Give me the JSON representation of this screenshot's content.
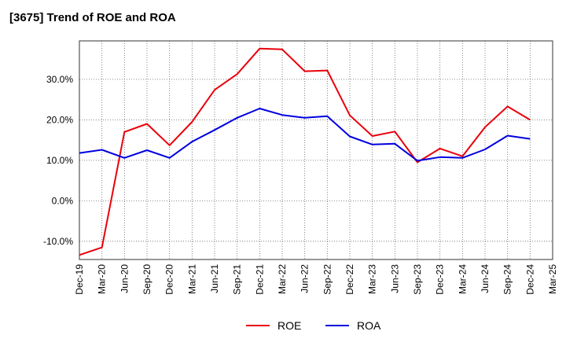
{
  "chart_data": {
    "type": "line",
    "title": "[3675]  Trend of ROE and ROA",
    "x": [
      "Dec-19",
      "Mar-20",
      "Jun-20",
      "Sep-20",
      "Dec-20",
      "Mar-21",
      "Jun-21",
      "Sep-21",
      "Dec-21",
      "Mar-22",
      "Jun-22",
      "Sep-22",
      "Dec-22",
      "Mar-23",
      "Jun-23",
      "Sep-23",
      "Dec-23",
      "Mar-24",
      "Jun-24",
      "Sep-24",
      "Dec-24",
      "Mar-25"
    ],
    "y_ticks": [
      "-10.0%",
      "0.0%",
      "10.0%",
      "20.0%",
      "30.0%"
    ],
    "y_tick_values": [
      -10,
      0,
      10,
      20,
      30
    ],
    "ylim": [
      -14.5,
      39.5
    ],
    "grid": true,
    "legend_position": "bottom",
    "series": [
      {
        "name": "ROE",
        "color": "#e8000b",
        "values": [
          -13.4,
          -11.5,
          17.0,
          19.0,
          13.7,
          19.5,
          27.4,
          31.3,
          37.6,
          37.4,
          32.0,
          32.2,
          21.1,
          16.0,
          17.1,
          9.5,
          12.9,
          11.0,
          18.2,
          23.3,
          20.0,
          null
        ]
      },
      {
        "name": "ROA",
        "color": "#0000e0",
        "values": [
          11.8,
          12.6,
          10.6,
          12.5,
          10.6,
          14.6,
          17.5,
          20.5,
          22.8,
          21.2,
          20.5,
          20.9,
          15.9,
          13.9,
          14.1,
          9.9,
          10.8,
          10.6,
          12.7,
          16.1,
          15.3,
          null
        ]
      }
    ]
  }
}
